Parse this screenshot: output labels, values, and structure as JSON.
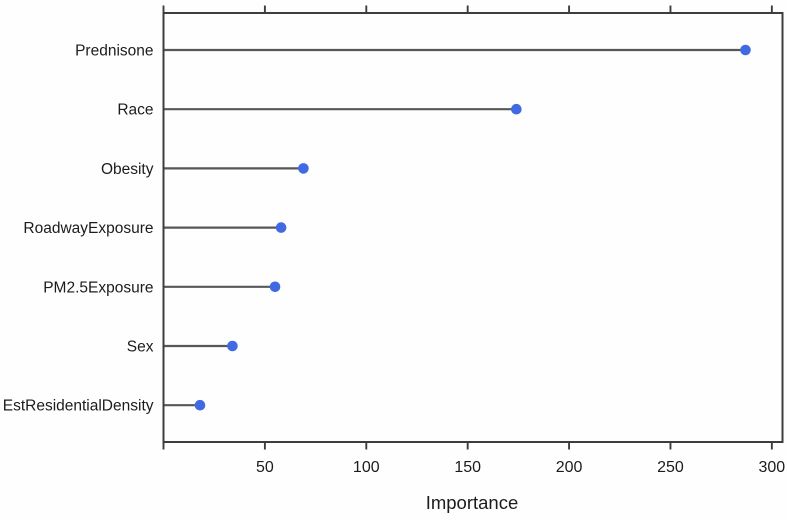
{
  "chart_data": {
    "type": "scatter",
    "variant": "lollipop-dotchart",
    "title": "",
    "xlabel": "Importance",
    "ylabel": "",
    "categories": [
      "Prednisone",
      "Race",
      "Obesity",
      "RoadwayExposure",
      "PM2.5Exposure",
      "Sex",
      "EstResidentialDensity"
    ],
    "values": [
      287,
      174,
      69,
      58,
      55,
      34,
      18
    ],
    "x_ticks": [
      50,
      100,
      150,
      200,
      250,
      300
    ],
    "xlim": [
      0,
      305
    ],
    "grid": false,
    "legend": "none",
    "colors": {
      "point": "#4169E1",
      "stem": "#575757",
      "axis": "#3d3d3d",
      "text": "#1c1c1c",
      "background": "#fefefe"
    }
  }
}
